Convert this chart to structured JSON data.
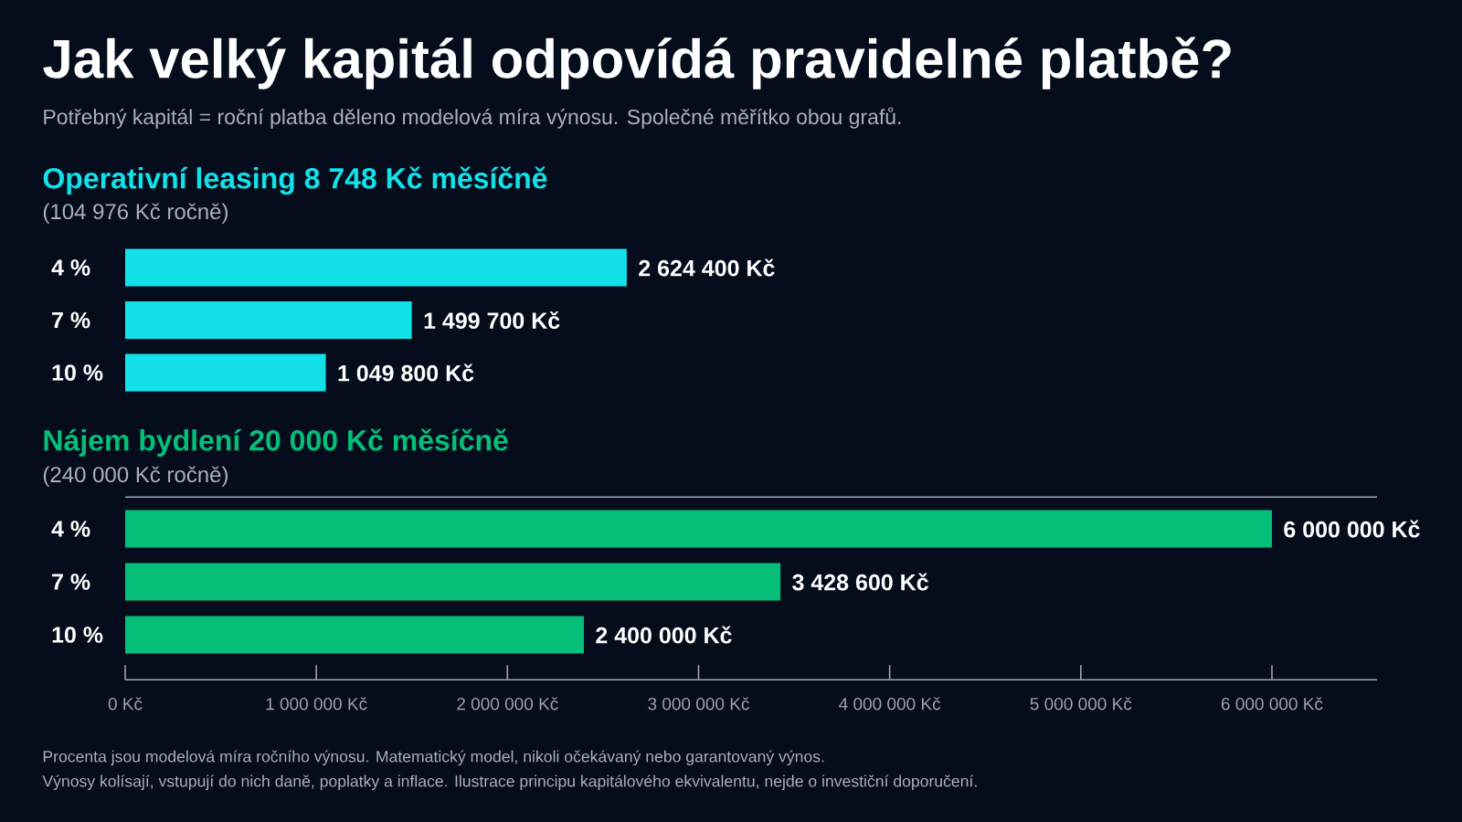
{
  "chart_data": [
    {
      "type": "other",
      "title": "Jak velký kapitál odpovídá pravidelné platbě?",
      "subtitle": "Potřebný kapitál = roční platba děleno modelová míra výnosu. Společné měřítko obou grafů."
    },
    {
      "type": "bar",
      "orientation": "horizontal",
      "title": "Operativní leasing 8 748 Kč měsíčně",
      "subtitle": "(104 976 Kč ročně)",
      "categories": [
        "4 %",
        "7 %",
        "10 %"
      ],
      "values": [
        2624400,
        1499700,
        1049800
      ],
      "color": "#12e1e9",
      "value_labels": [
        "2 624 400 Kč",
        "1 499 700 Kč",
        "1 049 800 Kč"
      ]
    },
    {
      "type": "bar",
      "orientation": "horizontal",
      "title": "Nájem bydlení 20 000 Kč měsíčně",
      "subtitle": "(240 000 Kč ročně)",
      "categories": [
        "4 %",
        "7 %",
        "10 %"
      ],
      "values": [
        6000000,
        3428600,
        2400000
      ],
      "color": "#05bf78",
      "value_labels": [
        "6 000 000 Kč",
        "3 428 600 Kč",
        "2 400 000 Kč"
      ],
      "xlim": [
        0,
        6550000
      ],
      "xticks": [
        {
          "value": 0,
          "label": "0 Kč"
        },
        {
          "value": 1000000,
          "label": "1 000 000 Kč"
        },
        {
          "value": 2000000,
          "label": "2 000 000 Kč"
        },
        {
          "value": 3000000,
          "label": "3 000 000 Kč"
        },
        {
          "value": 4000000,
          "label": "4 000 000 Kč"
        },
        {
          "value": 5000000,
          "label": "5 000 000 Kč"
        },
        {
          "value": 6000000,
          "label": "6 000 000 Kč"
        }
      ],
      "annotations": [
        "Procenta jsou modelová míra ročního výnosu. Matematický model, nikoli očekávaný nebo garantovaný výnos.",
        "Výnosy kolísají, vstupují do nich daně, poplatky a inflace. Ilustrace principu kapitálového ekvivalentu, nejde o investiční doporučení."
      ]
    }
  ]
}
